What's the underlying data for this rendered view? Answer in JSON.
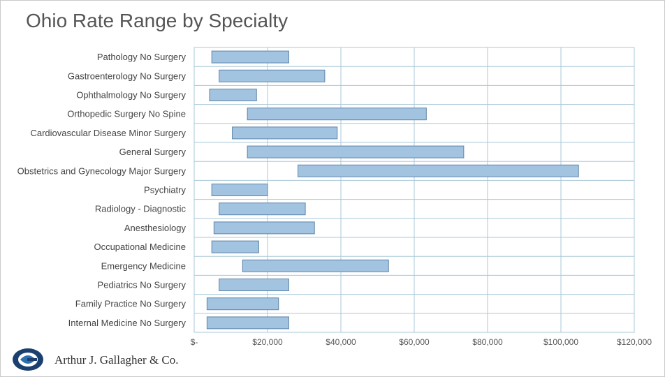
{
  "chart_data": {
    "type": "bar",
    "orientation": "horizontal",
    "subtype": "floating-range",
    "title": "Ohio Rate Range by Specialty",
    "xlabel": "",
    "ylabel": "",
    "xlim": [
      0,
      120000
    ],
    "tick_labels": [
      "$-",
      "$20,000",
      "$40,000",
      "$60,000",
      "$80,000",
      "$100,000",
      "$120,000"
    ],
    "tick_values": [
      0,
      20000,
      40000,
      60000,
      80000,
      100000,
      120000
    ],
    "grid": true,
    "categories": [
      "Pathology No Surgery",
      "Gastroenterology No Surgery",
      "Ophthalmology No Surgery",
      "Orthopedic Surgery No Spine",
      "Cardiovascular Disease Minor Surgery",
      "General Surgery",
      "Obstetrics and Gynecology Major Surgery",
      "Psychiatry",
      "Radiology - Diagnostic",
      "Anesthesiology",
      "Occupational Medicine",
      "Emergency Medicine",
      "Pediatrics No Surgery",
      "Family Practice No Surgery",
      "Internal Medicine No Surgery"
    ],
    "ranges": [
      [
        4800,
        25800
      ],
      [
        6800,
        35600
      ],
      [
        4200,
        17000
      ],
      [
        14500,
        63300
      ],
      [
        10400,
        39000
      ],
      [
        14500,
        73500
      ],
      [
        28300,
        104800
      ],
      [
        4800,
        20000
      ],
      [
        6800,
        30300
      ],
      [
        5400,
        32800
      ],
      [
        4800,
        17600
      ],
      [
        13200,
        53000
      ],
      [
        6800,
        25800
      ],
      [
        3500,
        23000
      ],
      [
        3500,
        25800
      ]
    ],
    "colors": {
      "bar_fill": "#a3c4e1",
      "bar_stroke": "#5d84a8",
      "grid": "#a8c8d8"
    }
  },
  "footer": {
    "company": "Arthur J. Gallagher & Co.",
    "logo_icon": "gallagher-globe-icon"
  }
}
